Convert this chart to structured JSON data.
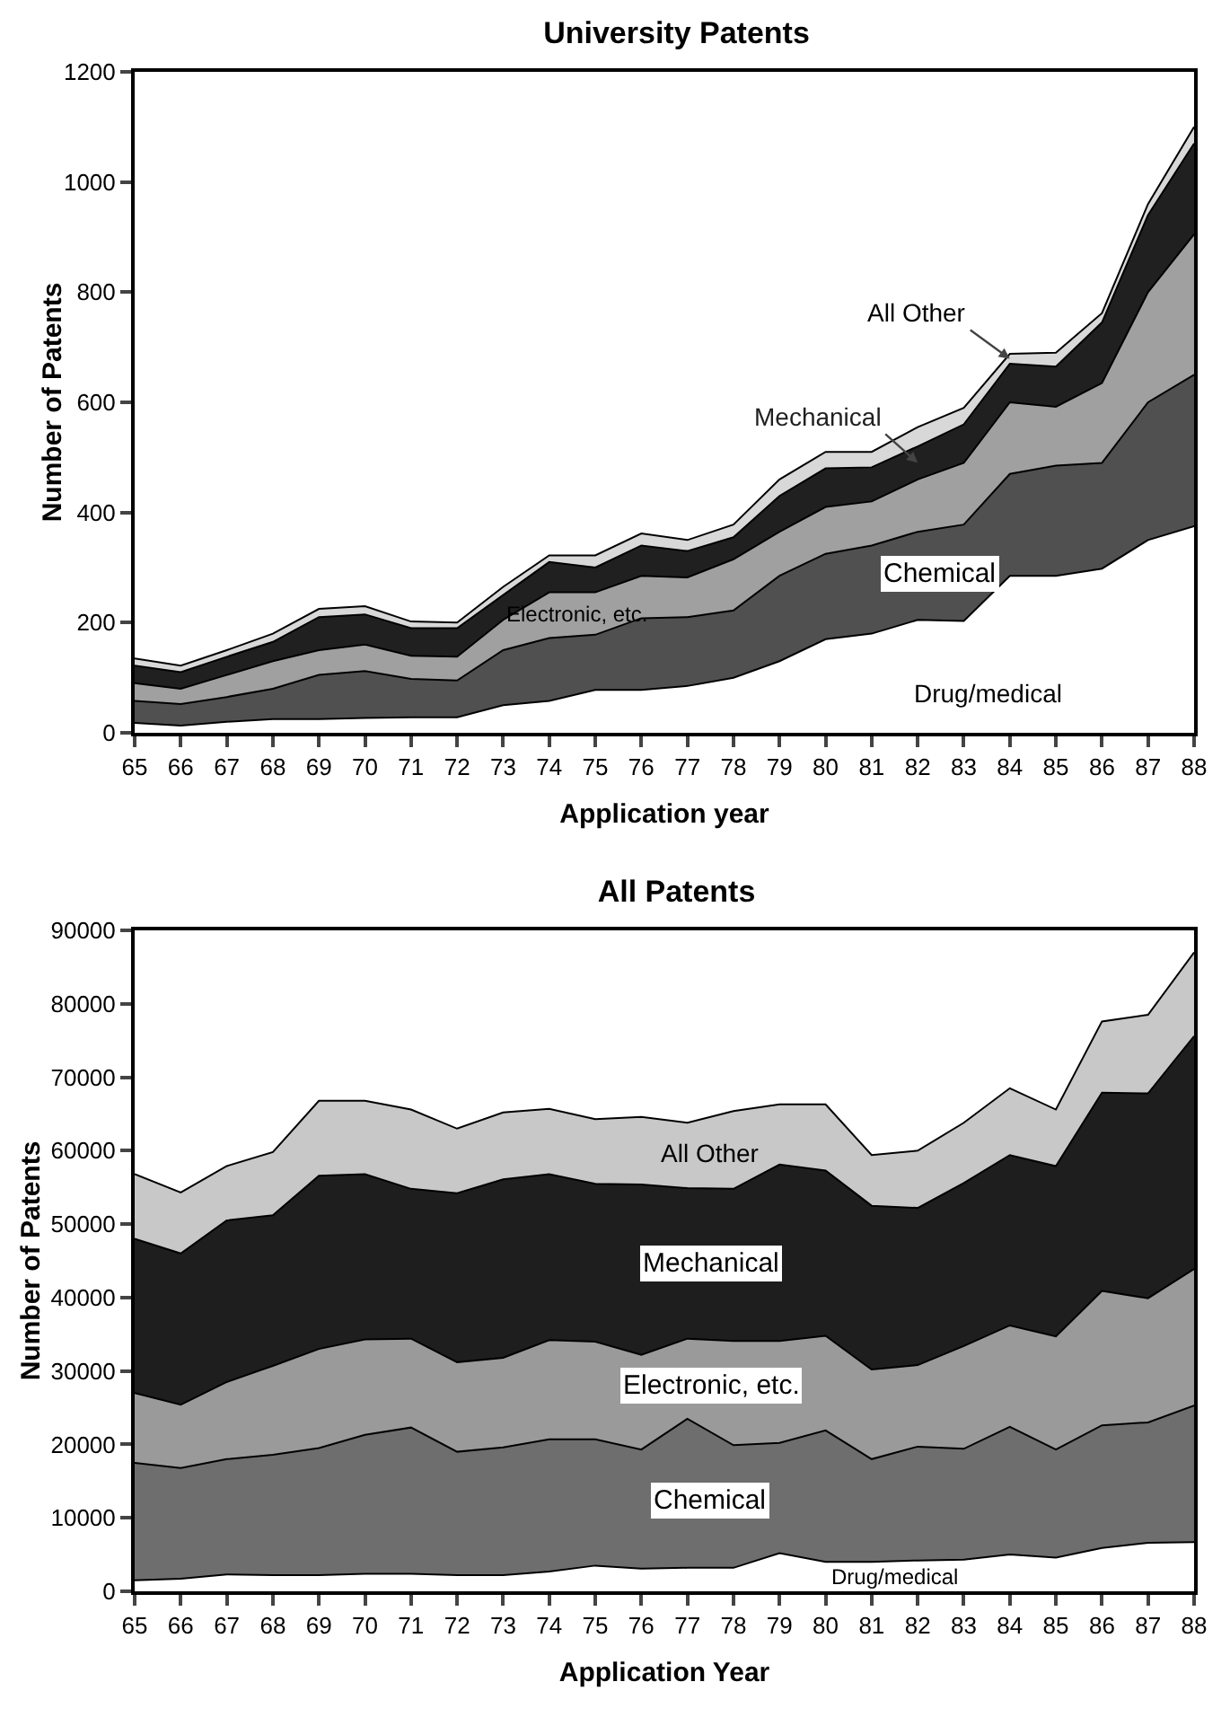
{
  "chart_data": [
    {
      "type": "area",
      "stacked": true,
      "title": "University Patents",
      "xlabel": "Application year",
      "ylabel": "Number of Patents",
      "categories": [
        "65",
        "66",
        "67",
        "68",
        "69",
        "70",
        "71",
        "72",
        "73",
        "74",
        "75",
        "76",
        "77",
        "78",
        "79",
        "80",
        "81",
        "82",
        "83",
        "84",
        "85",
        "86",
        "87",
        "88"
      ],
      "series": [
        {
          "name": "Drug/medical",
          "color": "#ffffff",
          "values": [
            18,
            13,
            20,
            25,
            25,
            27,
            28,
            28,
            50,
            58,
            78,
            78,
            85,
            100,
            130,
            170,
            180,
            205,
            203,
            285,
            285,
            298,
            350,
            375
          ]
        },
        {
          "name": "Chemical",
          "color": "#505050",
          "values": [
            40,
            39,
            45,
            55,
            80,
            85,
            70,
            67,
            100,
            114,
            100,
            130,
            125,
            122,
            155,
            155,
            160,
            160,
            175,
            185,
            200,
            192,
            250,
            275
          ]
        },
        {
          "name": "Electronic, etc.",
          "color": "#a0a0a0",
          "values": [
            32,
            28,
            40,
            50,
            45,
            48,
            42,
            43,
            55,
            83,
            77,
            77,
            72,
            93,
            80,
            85,
            80,
            95,
            112,
            130,
            107,
            145,
            200,
            255
          ]
        },
        {
          "name": "Mechanical",
          "color": "#202020",
          "values": [
            32,
            30,
            33,
            35,
            60,
            55,
            50,
            52,
            45,
            55,
            45,
            55,
            48,
            40,
            65,
            70,
            62,
            60,
            70,
            70,
            73,
            110,
            140,
            165
          ]
        },
        {
          "name": "All Other",
          "color": "#d8d8d8",
          "values": [
            13,
            12,
            12,
            15,
            15,
            15,
            12,
            10,
            15,
            12,
            22,
            22,
            20,
            23,
            30,
            30,
            28,
            35,
            30,
            18,
            25,
            17,
            20,
            30
          ]
        }
      ],
      "ylim": [
        0,
        1200
      ],
      "yticks": [
        0,
        200,
        400,
        600,
        800,
        1000,
        1200
      ],
      "grid": false,
      "legend": false
    },
    {
      "type": "area",
      "stacked": true,
      "title": "All Patents",
      "xlabel": "Application Year",
      "ylabel": "Number of Patents",
      "categories": [
        "65",
        "66",
        "67",
        "68",
        "69",
        "70",
        "71",
        "72",
        "73",
        "74",
        "75",
        "76",
        "77",
        "78",
        "79",
        "80",
        "81",
        "82",
        "83",
        "84",
        "85",
        "86",
        "87",
        "88"
      ],
      "series": [
        {
          "name": "Drug/medical",
          "color": "#ffffff",
          "values": [
            1500,
            1700,
            2300,
            2200,
            2200,
            2400,
            2400,
            2200,
            2200,
            2700,
            3500,
            3100,
            3200,
            3200,
            5200,
            4000,
            4000,
            4200,
            4300,
            5000,
            4600,
            5900,
            6600,
            6700
          ]
        },
        {
          "name": "Chemical",
          "color": "#6e6e6e",
          "values": [
            16000,
            15100,
            15700,
            16400,
            17300,
            18900,
            19900,
            16800,
            17400,
            18000,
            17200,
            16200,
            20300,
            16700,
            15000,
            17900,
            14000,
            15500,
            15100,
            17400,
            14700,
            16700,
            16400,
            18600
          ]
        },
        {
          "name": "Electronic, etc.",
          "color": "#9a9a9a",
          "values": [
            9500,
            8600,
            10500,
            12100,
            13500,
            13000,
            12100,
            12200,
            12200,
            13500,
            13300,
            12900,
            10900,
            14200,
            13900,
            12900,
            12200,
            11100,
            14000,
            13800,
            15400,
            18300,
            16900,
            18600
          ]
        },
        {
          "name": "Mechanical",
          "color": "#1e1e1e",
          "values": [
            21000,
            20600,
            22000,
            20500,
            23600,
            22500,
            20400,
            23000,
            24300,
            22600,
            21500,
            23200,
            20500,
            20700,
            24000,
            22500,
            22300,
            21400,
            22200,
            23200,
            23200,
            27000,
            27900,
            31700
          ]
        },
        {
          "name": "All Other",
          "color": "#c8c8c8",
          "values": [
            8800,
            8300,
            7400,
            8600,
            10200,
            10000,
            10800,
            8800,
            9100,
            8900,
            8800,
            9200,
            8900,
            10600,
            8200,
            9000,
            6900,
            7800,
            8200,
            9100,
            7700,
            9700,
            10700,
            11400
          ]
        }
      ],
      "ylim": [
        0,
        90000
      ],
      "yticks": [
        0,
        10000,
        20000,
        30000,
        40000,
        50000,
        60000,
        70000,
        80000,
        90000
      ],
      "grid": false,
      "legend": false
    }
  ]
}
